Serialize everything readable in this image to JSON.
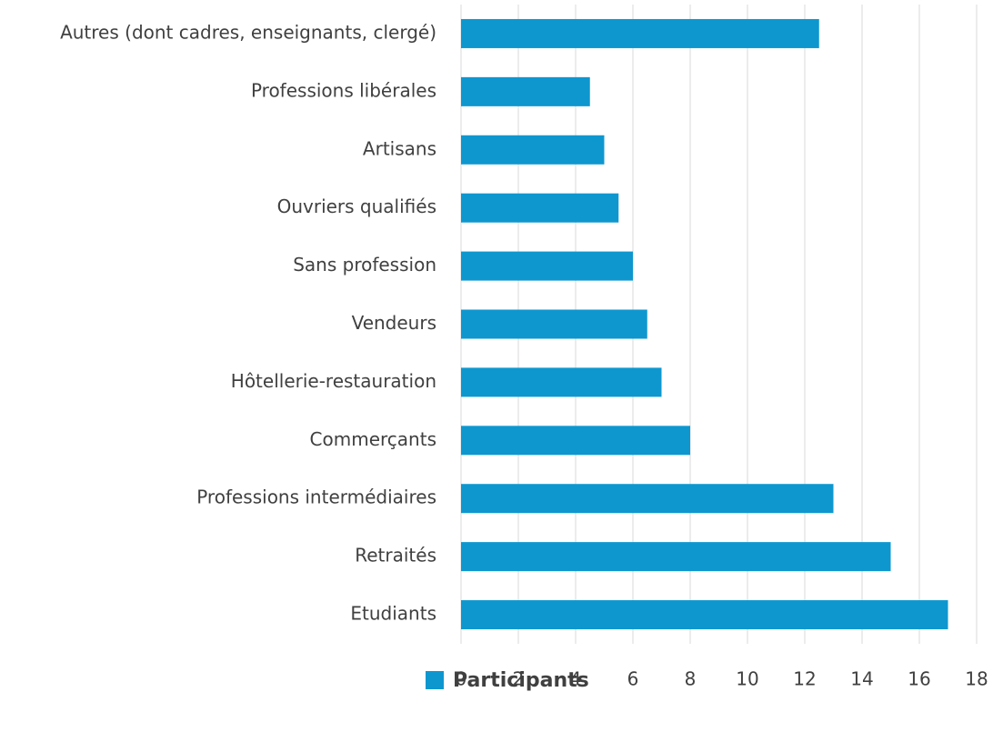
{
  "chart_data": {
    "type": "bar",
    "orientation": "horizontal",
    "categories": [
      "Autres (dont cadres, enseignants, clergé)",
      "Professions libérales",
      "Artisans",
      "Ouvriers qualifiés",
      "Sans profession",
      "Vendeurs",
      "Hôtellerie-restauration",
      "Commerçants",
      "Professions intermédiaires",
      "Retraités",
      "Etudiants"
    ],
    "series": [
      {
        "name": "Participants",
        "color": "#0e97cf",
        "values": [
          12.5,
          4.5,
          5,
          5.5,
          6,
          6.5,
          7,
          8,
          13,
          15,
          17
        ]
      }
    ],
    "xlim": [
      0,
      18
    ],
    "xticks": [
      0,
      2,
      4,
      6,
      8,
      10,
      12,
      14,
      16,
      18
    ],
    "grid": true,
    "legend": "bottom"
  }
}
